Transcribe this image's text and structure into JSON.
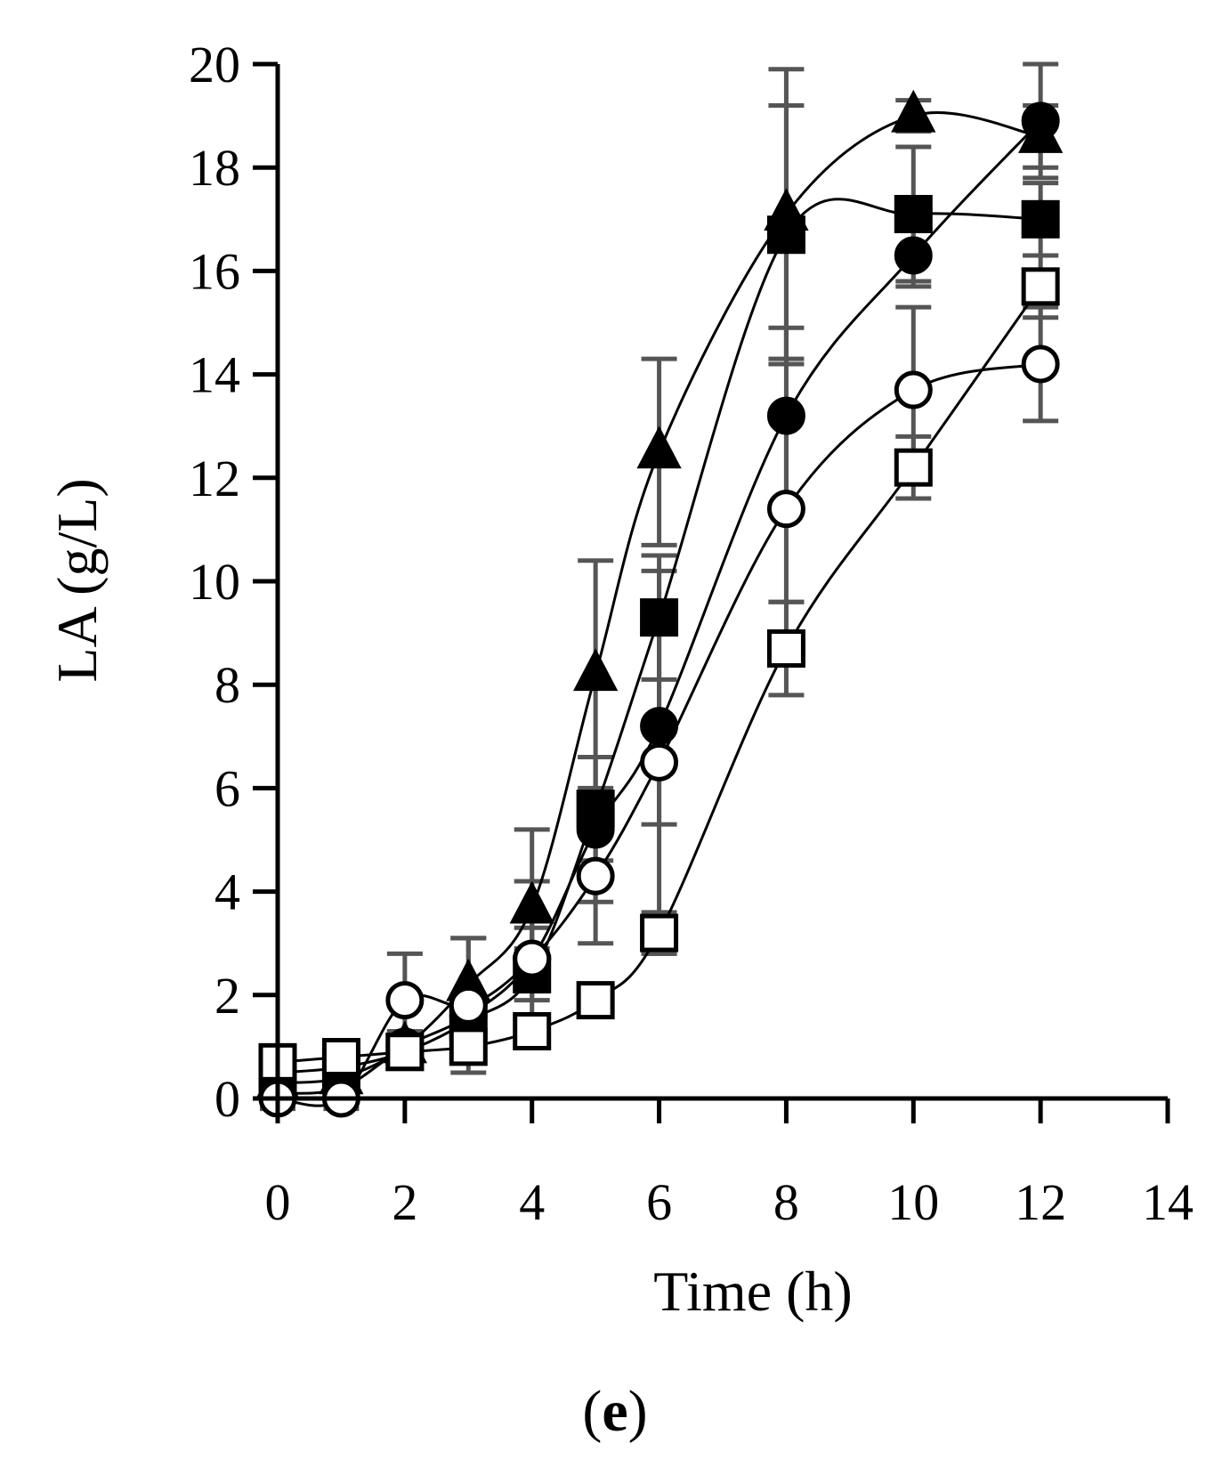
{
  "chart_data": {
    "type": "line",
    "xlabel": "Time (h)",
    "ylabel": "LA (g/L)",
    "xlim": [
      0,
      14
    ],
    "ylim": [
      0,
      20
    ],
    "xticks": [
      0,
      2,
      4,
      6,
      8,
      10,
      12,
      14
    ],
    "yticks": [
      0,
      2,
      4,
      6,
      8,
      10,
      12,
      14,
      16,
      18,
      20
    ],
    "grid": false,
    "legend": "none",
    "x": [
      0,
      1,
      2,
      3,
      4,
      5,
      6,
      8,
      10,
      12
    ],
    "series": [
      {
        "name": "filled-triangle",
        "marker": "triangle",
        "fill": "#000000",
        "values": [
          0.3,
          0.4,
          1.0,
          2.2,
          3.7,
          8.2,
          12.5,
          17.1,
          19.0,
          18.6
        ],
        "errors": [
          0.2,
          0.2,
          0.3,
          0.9,
          1.5,
          2.2,
          1.8,
          2.8,
          0.3,
          0.6
        ]
      },
      {
        "name": "filled-square",
        "marker": "square",
        "fill": "#000000",
        "values": [
          0.5,
          0.6,
          0.9,
          1.5,
          2.4,
          5.6,
          9.3,
          16.7,
          17.1,
          17.0
        ],
        "errors": [
          0.2,
          0.2,
          0.3,
          0.3,
          0.5,
          1.0,
          1.2,
          2.5,
          1.3,
          0.7
        ]
      },
      {
        "name": "filled-circle",
        "marker": "circle",
        "fill": "#000000",
        "values": [
          0.1,
          0.2,
          1.0,
          1.6,
          2.7,
          5.2,
          7.2,
          13.2,
          16.3,
          18.9
        ],
        "errors": [
          0.2,
          0.2,
          0.3,
          0.4,
          0.6,
          1.4,
          1.9,
          1.7,
          0.6,
          1.1
        ]
      },
      {
        "name": "open-circle",
        "marker": "circle",
        "fill": "#ffffff",
        "values": [
          0.0,
          0.0,
          1.9,
          1.8,
          2.7,
          4.3,
          6.5,
          11.4,
          13.7,
          14.2
        ],
        "errors": [
          0.2,
          0.2,
          0.9,
          1.3,
          1.5,
          1.3,
          3.7,
          1.8,
          1.6,
          1.1
        ]
      },
      {
        "name": "open-square",
        "marker": "square",
        "fill": "#ffffff",
        "values": [
          0.7,
          0.8,
          0.9,
          1.0,
          1.3,
          1.9,
          3.2,
          8.7,
          12.2,
          15.7
        ],
        "errors": [
          0.2,
          0.2,
          0.3,
          0.3,
          0.3,
          0.3,
          0.4,
          0.9,
          0.6,
          0.6
        ]
      }
    ],
    "panel_label": {
      "open": "(",
      "letter": "e",
      "close": ")"
    }
  }
}
